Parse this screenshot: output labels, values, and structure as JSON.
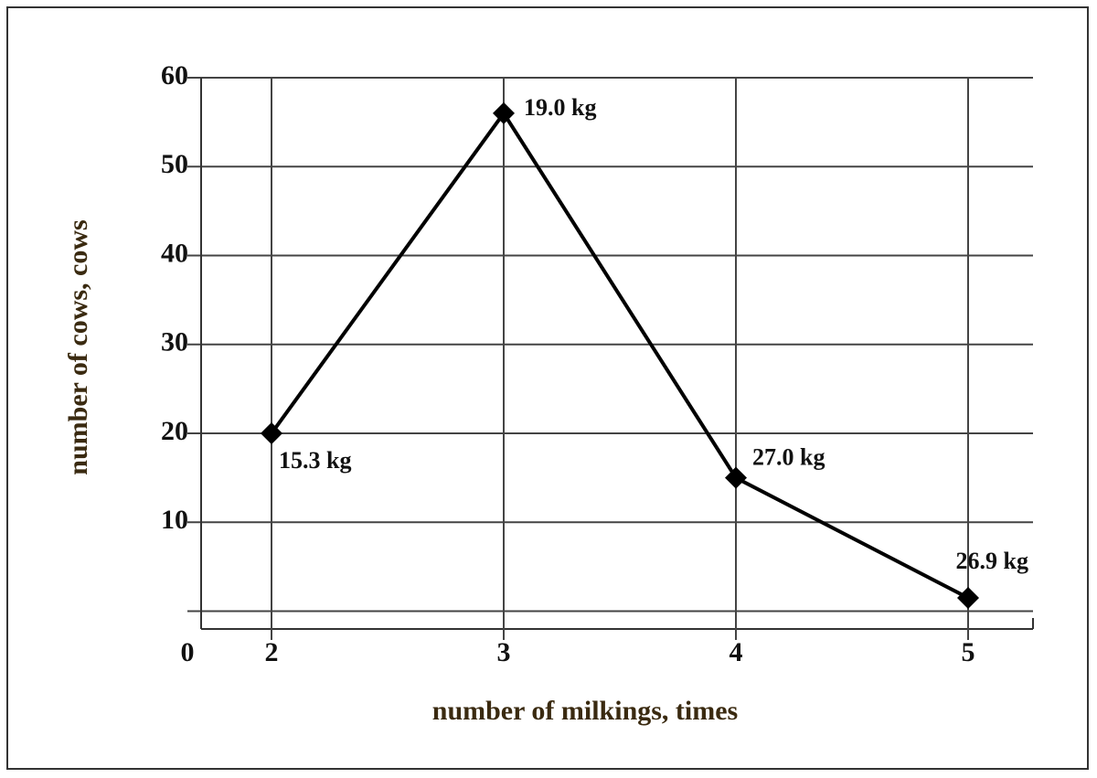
{
  "chart_data": {
    "type": "line",
    "x_title": "number of milkings, times",
    "y_title": "number of cows, cows",
    "categories": [
      "2",
      "3",
      "4",
      "5"
    ],
    "values": [
      20,
      56,
      15,
      1.5
    ],
    "value_labels": [
      "15.3 kg",
      "19.0 kg",
      "27.0 kg",
      "26.9 kg"
    ],
    "origin_label": "0",
    "color": "#000000",
    "ylim": [
      -2,
      60
    ],
    "yticks": [
      0,
      10,
      20,
      30,
      40,
      50,
      60
    ],
    "grid": true
  }
}
